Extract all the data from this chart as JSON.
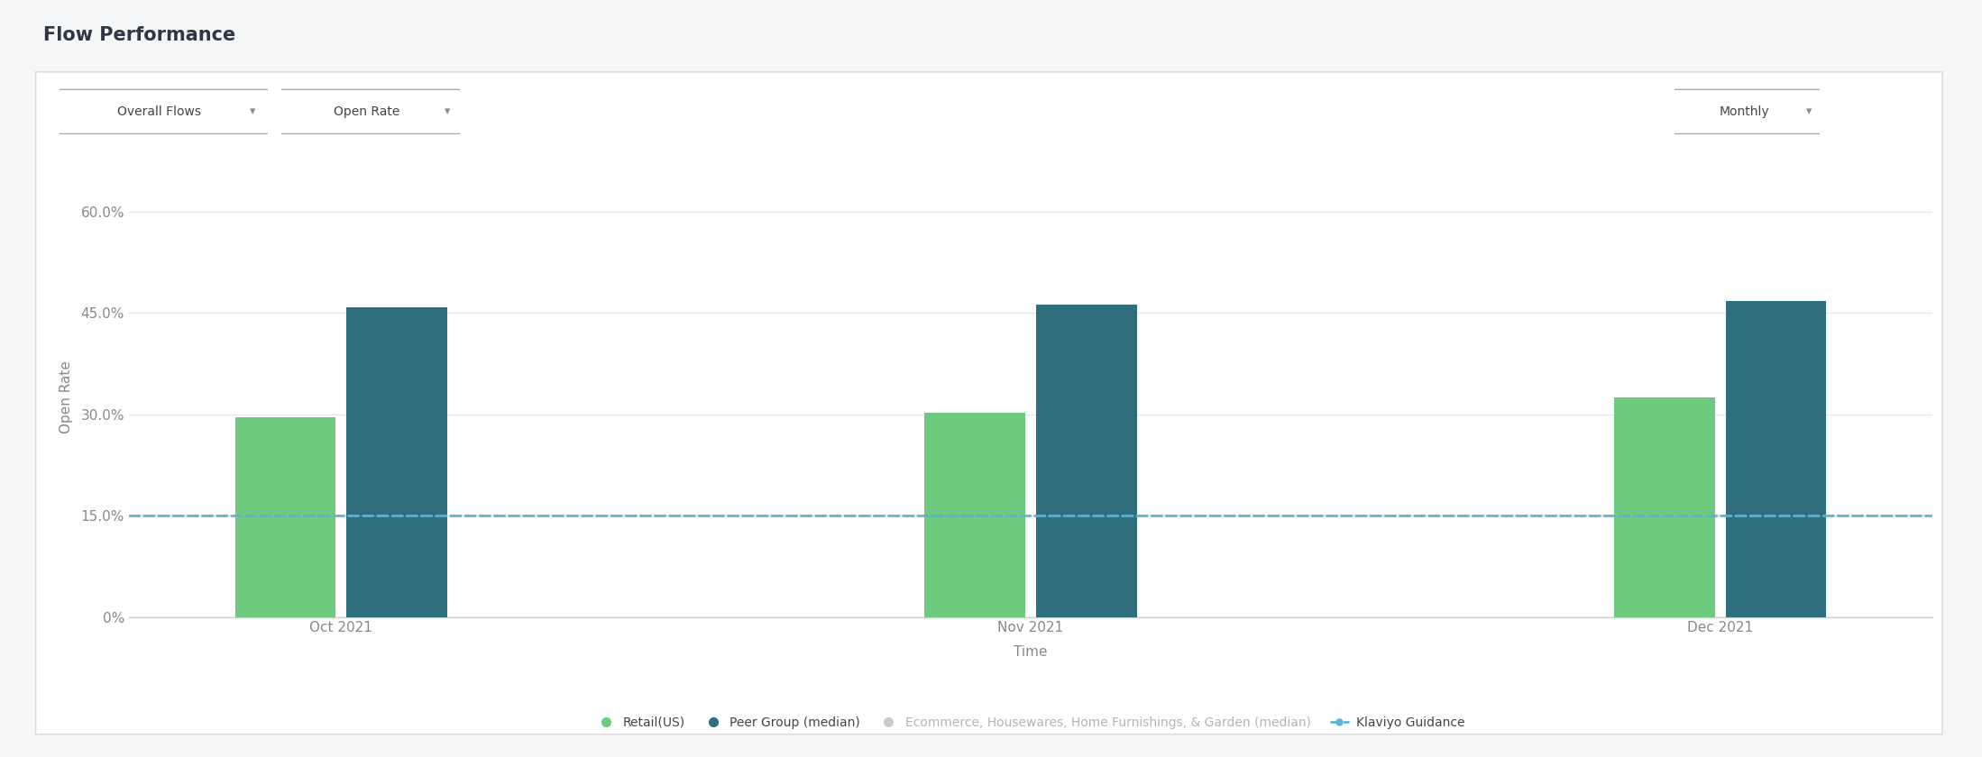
{
  "title": "Flow Performance",
  "ylabel": "Open Rate",
  "xlabel": "Time",
  "categories": [
    "Oct 2021",
    "Nov 2021",
    "Dec 2021"
  ],
  "retail_values": [
    0.295,
    0.302,
    0.325
  ],
  "peer_values": [
    0.458,
    0.463,
    0.468
  ],
  "klaviyo_guidance": 0.15,
  "retail_color": "#6dca7f",
  "peer_color": "#2e6e7e",
  "ecommerce_color": "#c8cdd0",
  "klaviyo_color": "#5ab4d6",
  "ylim": [
    0,
    0.65
  ],
  "yticks": [
    0.0,
    0.15,
    0.3,
    0.45,
    0.6
  ],
  "ytick_labels": [
    "0%",
    "15.0%",
    "30.0%",
    "45.0%",
    "60.0%"
  ],
  "bar_width": 0.38,
  "legend_items": [
    {
      "label": "Retail(US)",
      "color": "#6dca7f"
    },
    {
      "label": "Peer Group (median)",
      "color": "#2e6e7e"
    },
    {
      "label": "Ecommerce, Housewares, Home Furnishings, & Garden (median)",
      "color": "#c8cdd0"
    },
    {
      "label": "Klaviyo Guidance",
      "color": "#5ab4d6"
    }
  ],
  "dropdown_labels": [
    "Overall Flows",
    "Open Rate",
    "Monthly"
  ],
  "title_fontsize": 15,
  "axis_label_fontsize": 11,
  "tick_fontsize": 11,
  "legend_fontsize": 10,
  "fig_bg": "#f5f6f8",
  "card_bg": "#ffffff",
  "card_border": "#dddddd",
  "grid_color": "#e8e8e8",
  "spine_color": "#cccccc",
  "text_color": "#333333",
  "axis_text_color": "#888888"
}
